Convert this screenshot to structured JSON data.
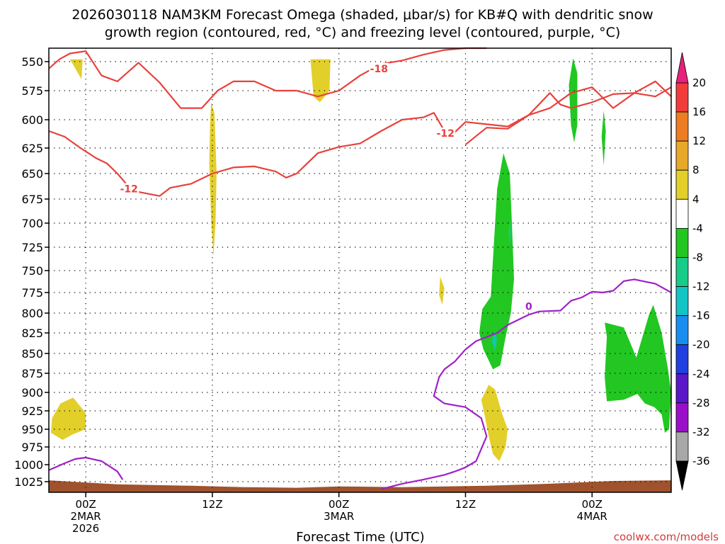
{
  "chart_data": {
    "type": "contour",
    "title_line1": "2026030118 NAM3KM Forecast Omega (shaded, μbar/s) for KB#Q with dendritic snow",
    "title_line2": "growth region (contoured, red, °C) and freezing level (contoured, purple, °C)",
    "xlabel": "Forecast Time (UTC)",
    "credit": "coolwx.com/models",
    "x_range_hours": [
      -3.5,
      55.5
    ],
    "x_ticks": [
      {
        "hour": 0,
        "lines": [
          "00Z",
          "2MAR",
          "2026"
        ]
      },
      {
        "hour": 12,
        "lines": [
          "12Z"
        ]
      },
      {
        "hour": 24,
        "lines": [
          "00Z",
          "3MAR"
        ]
      },
      {
        "hour": 36,
        "lines": [
          "12Z"
        ]
      },
      {
        "hour": 48,
        "lines": [
          "00Z",
          "4MAR"
        ]
      }
    ],
    "pressure_ticks": [
      550,
      575,
      600,
      625,
      650,
      675,
      700,
      725,
      750,
      775,
      800,
      825,
      850,
      875,
      900,
      925,
      950,
      975,
      1000,
      1025
    ],
    "colorbar": {
      "labels": [
        "20",
        "16",
        "12",
        "8",
        "4",
        "-4",
        "-8",
        "-12",
        "-16",
        "-20",
        "-24",
        "-28",
        "-32",
        "-36"
      ],
      "colors": [
        "#f23c3c",
        "#ee7c22",
        "#e8a82a",
        "#e2cf2a",
        "#ffffff",
        "#22c722",
        "#16cc88",
        "#12c4c4",
        "#1a8ef0",
        "#2040e0",
        "#5a18c8",
        "#9a10c8",
        "#a8a8a8"
      ],
      "top_arrow_color": "#e8207a",
      "bottom_arrow_color": "#000000"
    },
    "contour_labels": [
      {
        "text": "-18",
        "hour": 27.8,
        "pressure": 556,
        "color": "#e8413c"
      },
      {
        "text": "-12",
        "hour": 4.1,
        "pressure": 665,
        "color": "#e8413c"
      },
      {
        "text": "-12",
        "hour": 34.1,
        "pressure": 612,
        "color": "#e8413c"
      },
      {
        "text": "0",
        "hour": 42.0,
        "pressure": 792,
        "color": "#a020c8"
      }
    ],
    "series": [
      {
        "name": "dgz -18C (upper)",
        "color": "#e8413c",
        "points": [
          [
            -3.5,
            556
          ],
          [
            -2.5,
            548
          ],
          [
            -1.5,
            543
          ],
          [
            0,
            541
          ],
          [
            1.5,
            562
          ],
          [
            3,
            567
          ],
          [
            5,
            551
          ],
          [
            7,
            568
          ],
          [
            9,
            590
          ],
          [
            11,
            590
          ],
          [
            12.5,
            575
          ],
          [
            14,
            567
          ],
          [
            16,
            567
          ],
          [
            18,
            575
          ],
          [
            20,
            575
          ],
          [
            22,
            580
          ],
          [
            24,
            575
          ],
          [
            26,
            562
          ],
          [
            28,
            552
          ],
          [
            30,
            549
          ],
          [
            32,
            544
          ],
          [
            34,
            540
          ],
          [
            36,
            537
          ],
          [
            38,
            534
          ]
        ]
      },
      {
        "name": "dgz -18C (east)",
        "color": "#e8413c",
        "points": [
          [
            36,
            622
          ],
          [
            38,
            607
          ],
          [
            40,
            608
          ],
          [
            42,
            596
          ],
          [
            44,
            577
          ],
          [
            45,
            587
          ],
          [
            46,
            590
          ],
          [
            48,
            585
          ],
          [
            50,
            578
          ],
          [
            52,
            577
          ],
          [
            54,
            580
          ],
          [
            55.5,
            572
          ]
        ]
      },
      {
        "name": "dgz -12C",
        "color": "#e8413c",
        "points": [
          [
            -3.5,
            610
          ],
          [
            -2,
            615
          ],
          [
            -0.5,
            625
          ],
          [
            1,
            635
          ],
          [
            2,
            640
          ],
          [
            3,
            650
          ],
          [
            4,
            662
          ],
          [
            5,
            668
          ],
          [
            6,
            670
          ],
          [
            7,
            672
          ],
          [
            8,
            664
          ],
          [
            10,
            660
          ],
          [
            12,
            650
          ],
          [
            14,
            644
          ],
          [
            16,
            643
          ],
          [
            18,
            648
          ],
          [
            19,
            654
          ],
          [
            20,
            650
          ],
          [
            21,
            640
          ],
          [
            22,
            630
          ],
          [
            24,
            624
          ],
          [
            26,
            621
          ],
          [
            28,
            610
          ],
          [
            30,
            600
          ],
          [
            32,
            598
          ],
          [
            33,
            594
          ],
          [
            34,
            610
          ],
          [
            35,
            611
          ],
          [
            36,
            602
          ],
          [
            38,
            604
          ],
          [
            40,
            606
          ],
          [
            42,
            596
          ],
          [
            44,
            590
          ],
          [
            46,
            577
          ],
          [
            48,
            572
          ],
          [
            50,
            590
          ],
          [
            52,
            577
          ],
          [
            54,
            567
          ],
          [
            55.5,
            580
          ]
        ]
      },
      {
        "name": "freezing level 0C (west)",
        "color": "#a020c8",
        "points": [
          [
            -3.5,
            1008
          ],
          [
            -2,
            998
          ],
          [
            -1,
            992
          ],
          [
            0,
            990
          ],
          [
            1.5,
            995
          ],
          [
            3,
            1010
          ],
          [
            3.5,
            1022
          ]
        ]
      },
      {
        "name": "freezing level 0C (east)",
        "color": "#a020c8",
        "points": [
          [
            28,
            1036
          ],
          [
            30,
            1028
          ],
          [
            32,
            1022
          ],
          [
            34,
            1015
          ],
          [
            35,
            1010
          ],
          [
            36,
            1004
          ],
          [
            37,
            995
          ],
          [
            38,
            960
          ],
          [
            37.5,
            935
          ],
          [
            36,
            920
          ],
          [
            34,
            915
          ],
          [
            33,
            905
          ],
          [
            33.5,
            880
          ],
          [
            34,
            870
          ],
          [
            35,
            860
          ],
          [
            36,
            845
          ],
          [
            37,
            835
          ],
          [
            38,
            830
          ],
          [
            39,
            825
          ],
          [
            40,
            815
          ],
          [
            42,
            802
          ],
          [
            43,
            798
          ],
          [
            45,
            797
          ],
          [
            46,
            785
          ],
          [
            47,
            781
          ],
          [
            48,
            774
          ],
          [
            49,
            775
          ],
          [
            50,
            773
          ],
          [
            51,
            762
          ],
          [
            52,
            760
          ],
          [
            54,
            765
          ],
          [
            55.5,
            775
          ]
        ]
      }
    ],
    "shaded_regions": [
      {
        "value": "4 to 8",
        "color": "#e2cf2a",
        "points": [
          [
            -1.5,
            548
          ],
          [
            -0.3,
            548
          ],
          [
            -0.4,
            565
          ],
          [
            -0.6,
            562
          ]
        ]
      },
      {
        "value": "4 to 8",
        "color": "#e2cf2a",
        "points": [
          [
            21.3,
            548
          ],
          [
            23.2,
            548
          ],
          [
            23.1,
            575
          ],
          [
            22.2,
            585
          ],
          [
            21.6,
            580
          ]
        ]
      },
      {
        "value": "4 to 8",
        "color": "#e2cf2a",
        "points": [
          [
            11.9,
            585
          ],
          [
            12.2,
            595
          ],
          [
            12.4,
            650
          ],
          [
            12.3,
            700
          ],
          [
            12.1,
            735
          ],
          [
            11.9,
            700
          ],
          [
            11.7,
            640
          ],
          [
            11.8,
            600
          ]
        ]
      },
      {
        "value": "4 to 8",
        "color": "#e2cf2a",
        "points": [
          [
            -2.4,
            915
          ],
          [
            -1.2,
            907
          ],
          [
            0,
            928
          ],
          [
            0,
            950
          ],
          [
            -1.2,
            957
          ],
          [
            -2.2,
            965
          ],
          [
            -3.3,
            955
          ],
          [
            -3.2,
            935
          ]
        ]
      },
      {
        "value": "4 to 8",
        "color": "#e2cf2a",
        "points": [
          [
            33.6,
            757
          ],
          [
            34,
            770
          ],
          [
            33.8,
            790
          ],
          [
            33.5,
            778
          ]
        ]
      },
      {
        "value": "4 to 8",
        "color": "#e2cf2a",
        "points": [
          [
            38.2,
            890
          ],
          [
            38.8,
            896
          ],
          [
            39.5,
            930
          ],
          [
            40,
            950
          ],
          [
            39.8,
            975
          ],
          [
            39.2,
            995
          ],
          [
            38.6,
            985
          ],
          [
            38.2,
            960
          ],
          [
            37.8,
            930
          ],
          [
            37.5,
            910
          ]
        ]
      },
      {
        "value": "-4 to -8",
        "color": "#22c722",
        "points": [
          [
            39.6,
            630
          ],
          [
            40.2,
            650
          ],
          [
            40.4,
            700
          ],
          [
            40.6,
            760
          ],
          [
            40.3,
            800
          ],
          [
            39.8,
            830
          ],
          [
            39.3,
            865
          ],
          [
            38.6,
            870
          ],
          [
            37.7,
            845
          ],
          [
            37.3,
            825
          ],
          [
            37.6,
            795
          ],
          [
            38.4,
            780
          ],
          [
            38.7,
            720
          ],
          [
            39,
            665
          ]
        ]
      },
      {
        "value": "-4 to -8",
        "color": "#22c722",
        "points": [
          [
            46.2,
            547
          ],
          [
            46.6,
            560
          ],
          [
            46.6,
            605
          ],
          [
            46.3,
            620
          ],
          [
            46,
            605
          ],
          [
            45.8,
            570
          ]
        ]
      },
      {
        "value": "-4 to -8",
        "color": "#22c722",
        "points": [
          [
            49.1,
            592
          ],
          [
            49.3,
            610
          ],
          [
            49.1,
            642
          ],
          [
            48.9,
            615
          ]
        ]
      },
      {
        "value": "-4 to -8",
        "color": "#22c722",
        "points": [
          [
            49.2,
            812
          ],
          [
            51,
            818
          ],
          [
            52.2,
            855
          ],
          [
            53.4,
            802
          ],
          [
            53.8,
            790
          ],
          [
            54.6,
            825
          ],
          [
            55.2,
            870
          ],
          [
            55.5,
            900
          ],
          [
            55.3,
            950
          ],
          [
            54.9,
            955
          ],
          [
            54.6,
            930
          ],
          [
            53.9,
            920
          ],
          [
            53,
            915
          ],
          [
            52.3,
            902
          ],
          [
            51,
            910
          ],
          [
            49.4,
            912
          ],
          [
            49.2,
            880
          ],
          [
            49.4,
            830
          ]
        ]
      },
      {
        "value": "-8 to -12",
        "color": "#16cc88",
        "points": [
          [
            40.2,
            695
          ],
          [
            40.3,
            710
          ],
          [
            40.2,
            725
          ],
          [
            40.1,
            710
          ]
        ]
      },
      {
        "value": "-8 to -12",
        "color": "#16cc88",
        "points": [
          [
            38.7,
            822
          ],
          [
            39,
            832
          ],
          [
            38.8,
            848
          ],
          [
            38.5,
            835
          ]
        ]
      },
      {
        "value": "-12 to -16",
        "color": "#12c4c4",
        "points": [
          [
            38.7,
            828
          ],
          [
            38.85,
            835
          ],
          [
            38.75,
            843
          ],
          [
            38.6,
            836
          ]
        ]
      }
    ],
    "terrain": {
      "color": "#a0522d",
      "top_pressure": 1025,
      "top_edge": [
        [
          -3.5,
          1023
        ],
        [
          3,
          1029
        ],
        [
          10,
          1031
        ],
        [
          15,
          1033
        ],
        [
          20,
          1034
        ],
        [
          24,
          1032
        ],
        [
          30,
          1033
        ],
        [
          38,
          1031
        ],
        [
          44,
          1028
        ],
        [
          50,
          1024
        ],
        [
          55.5,
          1023
        ]
      ]
    }
  }
}
